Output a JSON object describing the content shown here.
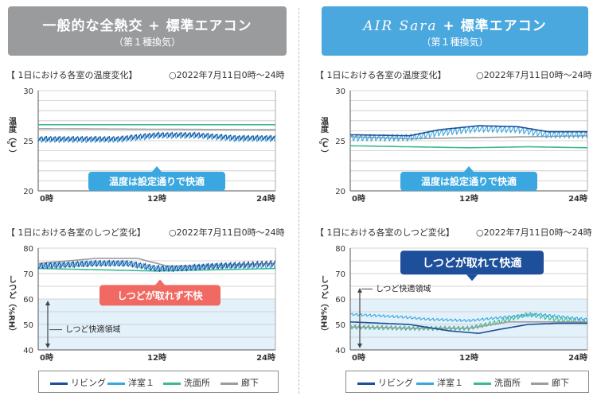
{
  "headers": {
    "left": {
      "title": "一般的な全熱交 + 標準エアコン",
      "subtitle": "（第１種換気）"
    },
    "right": {
      "brand": "AIR Sara",
      "title_rest": " + 標準エアコン",
      "subtitle": "（第１種換気）"
    }
  },
  "panel_titles": {
    "temp": "【 1日における各室の温度変化】",
    "humid": "【 1日における各室のしつど変化】",
    "date": "○2022年7月11日0時～24時"
  },
  "legend": [
    {
      "name": "リビング",
      "color": "#1d4f9a"
    },
    {
      "name": "洋室１",
      "color": "#3aa7e0"
    },
    {
      "name": "洗面所",
      "color": "#3cba8e"
    },
    {
      "name": "廊下",
      "color": "#9c9c9c"
    }
  ],
  "chart_data": [
    {
      "type": "line",
      "title": "【 1日における各室の温度変化】",
      "ylabel": "温度（℃）",
      "ylim": [
        20,
        30
      ],
      "yticks": [
        "20",
        "25",
        "30"
      ],
      "xticks": [
        "0時",
        "12時",
        "24時"
      ],
      "xlim": [
        0,
        24
      ],
      "grid": true,
      "annotation": {
        "text": "温度は設定通りで快適",
        "color": "#3aa7e0"
      },
      "series": [
        {
          "name": "リビング",
          "oscillating": true,
          "base": [
            [
              0,
              25.2
            ],
            [
              8,
              25.2
            ],
            [
              12,
              25.6
            ],
            [
              16,
              25.6
            ],
            [
              20,
              25.3
            ],
            [
              24,
              25.3
            ]
          ],
          "amp": 0.5
        },
        {
          "name": "洋室１",
          "oscillating": true,
          "base": [
            [
              0,
              25.1
            ],
            [
              8,
              25.1
            ],
            [
              12,
              25.5
            ],
            [
              16,
              25.5
            ],
            [
              20,
              25.2
            ],
            [
              24,
              25.2
            ]
          ],
          "amp": 0.6
        },
        {
          "name": "洗面所",
          "oscillating": false,
          "base": [
            [
              0,
              26.6
            ],
            [
              24,
              26.6
            ]
          ],
          "amp": 0
        },
        {
          "name": "廊下",
          "oscillating": false,
          "base": [
            [
              0,
              26.2
            ],
            [
              24,
              26.1
            ]
          ],
          "amp": 0
        }
      ]
    },
    {
      "type": "line",
      "title": "【 1日における各室の温度変化】",
      "ylabel": "温度（℃）",
      "ylim": [
        20,
        30
      ],
      "yticks": [
        "20",
        "25",
        "30"
      ],
      "xticks": [
        "0時",
        "12時",
        "24時"
      ],
      "xlim": [
        0,
        24
      ],
      "grid": true,
      "annotation": {
        "text": "温度は設定通りで快適",
        "color": "#3aa7e0"
      },
      "series": [
        {
          "name": "リビング",
          "oscillating": false,
          "base": [
            [
              0,
              25.6
            ],
            [
              6,
              25.5
            ],
            [
              9,
              26.1
            ],
            [
              13,
              26.5
            ],
            [
              17,
              26.4
            ],
            [
              20,
              25.9
            ],
            [
              24,
              25.9
            ]
          ],
          "amp": 0
        },
        {
          "name": "洋室１",
          "oscillating": true,
          "base": [
            [
              0,
              25.3
            ],
            [
              6,
              25.3
            ],
            [
              9,
              25.8
            ],
            [
              13,
              26.2
            ],
            [
              17,
              26.1
            ],
            [
              20,
              25.6
            ],
            [
              24,
              25.6
            ]
          ],
          "amp": 0.7
        },
        {
          "name": "洗面所",
          "oscillating": false,
          "base": [
            [
              0,
              24.5
            ],
            [
              6,
              24.4
            ],
            [
              12,
              24.3
            ],
            [
              18,
              24.4
            ],
            [
              24,
              24.3
            ]
          ],
          "amp": 0
        },
        {
          "name": "廊下",
          "oscillating": false,
          "base": [
            [
              0,
              25.4
            ],
            [
              6,
              25.2
            ],
            [
              12,
              25.3
            ],
            [
              18,
              25.4
            ],
            [
              24,
              25.5
            ]
          ],
          "amp": 0
        }
      ]
    },
    {
      "type": "line",
      "title": "【 1日における各室のしつど変化】",
      "ylabel": "しつど（%RH）",
      "ylim": [
        40,
        80
      ],
      "yticks": [
        "40",
        "50",
        "60",
        "70",
        "80"
      ],
      "xticks": [
        "0時",
        "12時",
        "24時"
      ],
      "xlim": [
        0,
        24
      ],
      "grid": true,
      "comfort_band": {
        "label": "しつど快適領域",
        "range": [
          40,
          60
        ]
      },
      "annotation": {
        "text": "しつどが取れず不快",
        "color": "#f06a63"
      },
      "series": [
        {
          "name": "リビング",
          "oscillating": true,
          "base": [
            [
              0,
              73
            ],
            [
              6,
              74
            ],
            [
              9,
              74
            ],
            [
              12,
              72
            ],
            [
              14,
              72
            ],
            [
              18,
              73
            ],
            [
              24,
              74
            ]
          ],
          "amp": 2.5
        },
        {
          "name": "洋室１",
          "oscillating": true,
          "base": [
            [
              0,
              73
            ],
            [
              6,
              74
            ],
            [
              9,
              74
            ],
            [
              12,
              72
            ],
            [
              14,
              72
            ],
            [
              18,
              73
            ],
            [
              24,
              73
            ]
          ],
          "amp": 2.2
        },
        {
          "name": "洗面所",
          "oscillating": false,
          "base": [
            [
              0,
              72
            ],
            [
              12,
              71
            ],
            [
              24,
              72
            ]
          ],
          "amp": 0
        },
        {
          "name": "廊下",
          "oscillating": false,
          "base": [
            [
              0,
              74
            ],
            [
              6,
              76
            ],
            [
              10,
              76
            ],
            [
              13,
              73
            ],
            [
              16,
              73
            ],
            [
              24,
              74
            ]
          ],
          "amp": 0
        }
      ]
    },
    {
      "type": "line",
      "title": "【 1日における各室のしつど変化】",
      "ylabel": "しつど（%RH）",
      "ylim": [
        40,
        80
      ],
      "yticks": [
        "40",
        "50",
        "60",
        "70",
        "80"
      ],
      "xticks": [
        "0時",
        "12時",
        "24時"
      ],
      "xlim": [
        0,
        24
      ],
      "grid": true,
      "comfort_band": {
        "label": "しつど快適領域",
        "range": [
          40,
          60
        ]
      },
      "annotation": {
        "text": "しつどが取れて快適",
        "color": "#1d4f9a"
      },
      "series": [
        {
          "name": "リビング",
          "oscillating": false,
          "base": [
            [
              0,
              51
            ],
            [
              6,
              50
            ],
            [
              10,
              47.5
            ],
            [
              13,
              46.5
            ],
            [
              15,
              48
            ],
            [
              18,
              50
            ],
            [
              21,
              50.5
            ],
            [
              24,
              50.5
            ]
          ],
          "amp": 0
        },
        {
          "name": "洋室１",
          "oscillating": true,
          "base": [
            [
              0,
              54
            ],
            [
              5,
              53
            ],
            [
              8,
              52
            ],
            [
              12,
              51.5
            ],
            [
              16,
              53
            ],
            [
              19,
              54
            ],
            [
              24,
              52
            ]
          ],
          "amp": 1.0
        },
        {
          "name": "洗面所",
          "oscillating": true,
          "base": [
            [
              0,
              49
            ],
            [
              6,
              48.5
            ],
            [
              12,
              48.5
            ],
            [
              15,
              51
            ],
            [
              18,
              54
            ],
            [
              21,
              52
            ],
            [
              24,
              51
            ]
          ],
          "amp": 1.8
        },
        {
          "name": "廊下",
          "oscillating": false,
          "base": [
            [
              0,
              49
            ],
            [
              6,
              48.5
            ],
            [
              12,
              48.5
            ],
            [
              16,
              51
            ],
            [
              20,
              51
            ],
            [
              24,
              51
            ]
          ],
          "amp": 0
        }
      ]
    }
  ]
}
